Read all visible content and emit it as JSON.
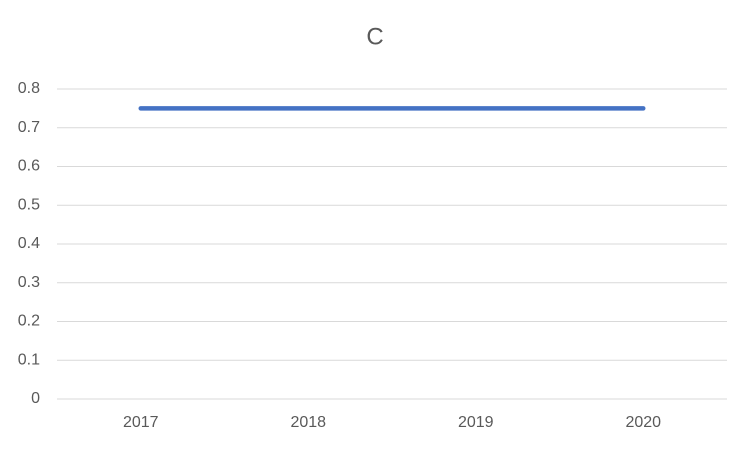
{
  "chart_data": {
    "type": "line",
    "title": "C",
    "categories": [
      "2017",
      "2018",
      "2019",
      "2020"
    ],
    "values": [
      0.75,
      0.75,
      0.75,
      0.75
    ],
    "color": "#4472c4",
    "ylim": [
      0,
      0.8
    ],
    "yticks": [
      0,
      0.1,
      0.2,
      0.3,
      0.4,
      0.5,
      0.6,
      0.7,
      0.8
    ],
    "grid": true
  }
}
